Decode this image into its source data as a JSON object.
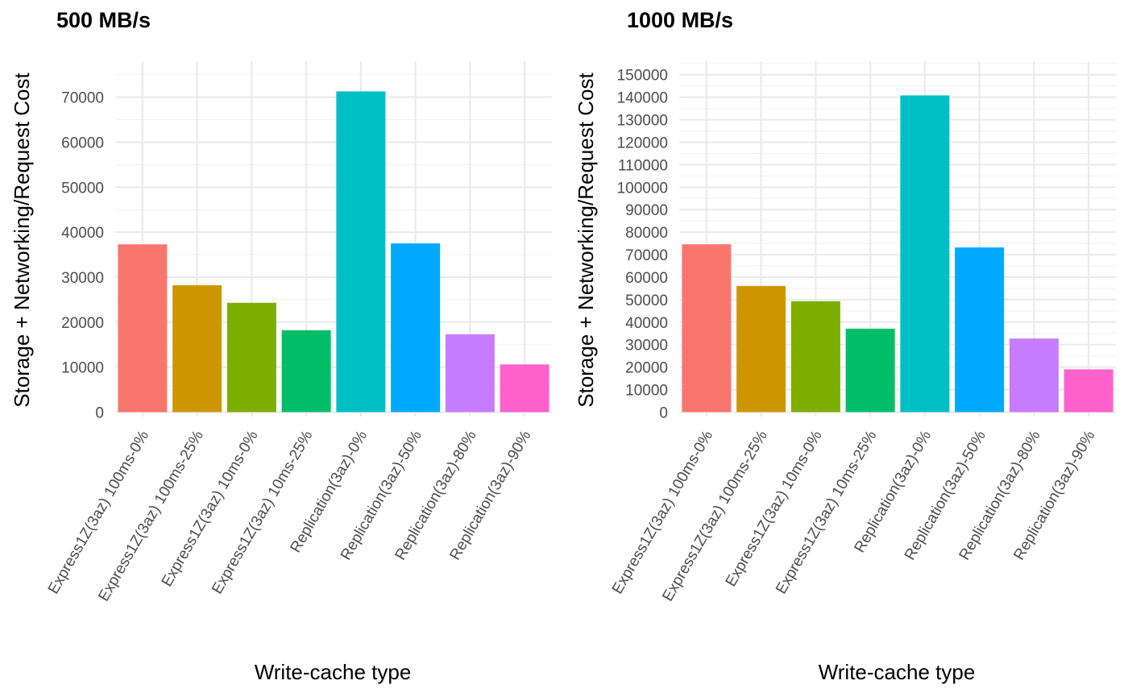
{
  "chart_data": [
    {
      "type": "bar",
      "title": "500 MB/s",
      "xlabel": "Write-cache type",
      "ylabel": "Storage + Networking/Request Cost",
      "categories": [
        "Express1Z(3az) 100ms-0%",
        "Express1Z(3az) 100ms-25%",
        "Express1Z(3az) 10ms-0%",
        "Express1Z(3az) 10ms-25%",
        "Replication(3az)-0%",
        "Replication(3az)-50%",
        "Replication(3az)-80%",
        "Replication(3az)-90%"
      ],
      "values": [
        37300,
        28200,
        24300,
        18200,
        71300,
        37500,
        17300,
        10600
      ],
      "colors": [
        "#F8766D",
        "#CD9600",
        "#7CAE00",
        "#00BE67",
        "#00BFC4",
        "#00A9FF",
        "#C77CFF",
        "#FF61CC"
      ],
      "yticks": [
        0,
        10000,
        20000,
        30000,
        40000,
        50000,
        60000,
        70000
      ],
      "ylim": [
        -1000,
        78000
      ],
      "grid": true,
      "legend": "none"
    },
    {
      "type": "bar",
      "title": "1000 MB/s",
      "xlabel": "Write-cache type",
      "ylabel": "Storage + Networking/Request Cost",
      "categories": [
        "Express1Z(3az) 100ms-0%",
        "Express1Z(3az) 100ms-25%",
        "Express1Z(3az) 10ms-0%",
        "Express1Z(3az) 10ms-25%",
        "Replication(3az)-0%",
        "Replication(3az)-50%",
        "Replication(3az)-80%",
        "Replication(3az)-90%"
      ],
      "values": [
        74600,
        56100,
        49300,
        37100,
        140800,
        73200,
        32700,
        19000
      ],
      "colors": [
        "#F8766D",
        "#CD9600",
        "#7CAE00",
        "#00BE67",
        "#00BFC4",
        "#00A9FF",
        "#C77CFF",
        "#FF61CC"
      ],
      "yticks": [
        0,
        10000,
        20000,
        30000,
        40000,
        50000,
        60000,
        70000,
        80000,
        90000,
        100000,
        110000,
        120000,
        130000,
        140000,
        150000
      ],
      "ylim": [
        -2000,
        156000
      ],
      "grid": true,
      "legend": "none"
    }
  ]
}
